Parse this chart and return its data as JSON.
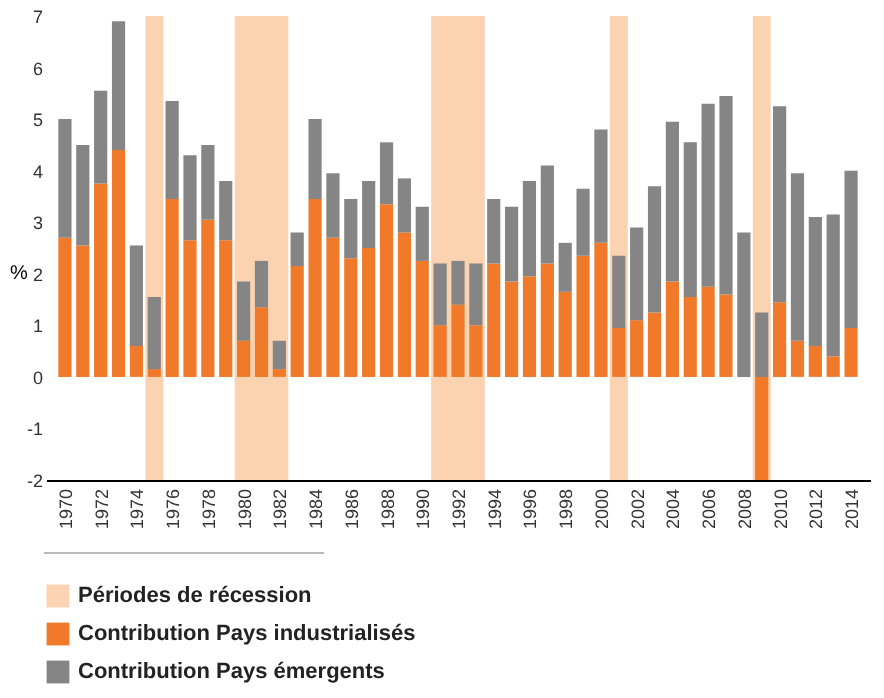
{
  "chart_data": {
    "type": "bar",
    "stacked": true,
    "ylabel": "%",
    "x": [
      1970,
      1971,
      1972,
      1973,
      1974,
      1975,
      1976,
      1977,
      1978,
      1979,
      1980,
      1981,
      1982,
      1983,
      1984,
      1985,
      1986,
      1987,
      1988,
      1989,
      1990,
      1991,
      1992,
      1993,
      1994,
      1995,
      1996,
      1997,
      1998,
      1999,
      2000,
      2001,
      2002,
      2003,
      2004,
      2005,
      2006,
      2007,
      2008,
      2009,
      2010,
      2011,
      2012,
      2013,
      2014
    ],
    "series": [
      {
        "name": "Contribution Pays industrialisés",
        "color": "#f07a2a",
        "values": [
          2.7,
          2.55,
          3.75,
          4.4,
          0.6,
          0.15,
          3.45,
          2.65,
          3.05,
          2.65,
          0.7,
          1.35,
          0.15,
          2.15,
          3.45,
          2.7,
          2.3,
          2.5,
          3.35,
          2.8,
          2.25,
          1.0,
          1.4,
          1.0,
          2.2,
          1.85,
          1.95,
          2.2,
          1.65,
          2.35,
          2.6,
          0.95,
          1.1,
          1.25,
          1.85,
          1.55,
          1.75,
          1.6,
          0.0,
          -2.0,
          1.45,
          0.7,
          0.6,
          0.4,
          0.95
        ]
      },
      {
        "name": "Contribution Pays émergents",
        "color": "#858585",
        "values": [
          2.3,
          1.95,
          1.8,
          2.5,
          1.95,
          1.4,
          1.9,
          1.65,
          1.45,
          1.15,
          1.15,
          0.9,
          0.55,
          0.65,
          1.55,
          1.25,
          1.15,
          1.3,
          1.2,
          1.05,
          1.05,
          1.2,
          0.85,
          1.2,
          1.25,
          1.45,
          1.85,
          1.9,
          0.95,
          1.3,
          2.2,
          1.4,
          1.8,
          2.45,
          3.1,
          3.0,
          3.55,
          3.85,
          2.8,
          1.25,
          3.8,
          3.25,
          2.5,
          2.75,
          3.05
        ]
      }
    ],
    "bands": [
      {
        "axis": "x",
        "from": 1974.5,
        "to": 1975.5,
        "label": "Périodes de récession",
        "color": "#fbd3b1"
      },
      {
        "axis": "x",
        "from": 1979.5,
        "to": 1982.5,
        "color": "#fbd3b1"
      },
      {
        "axis": "x",
        "from": 1990.5,
        "to": 1993.5,
        "color": "#fbd3b1"
      },
      {
        "axis": "x",
        "from": 2000.5,
        "to": 2001.5,
        "color": "#fbd3b1"
      },
      {
        "axis": "x",
        "from": 2008.5,
        "to": 2009.5,
        "color": "#fbd3b1"
      }
    ],
    "xlim": [
      1969.5,
      2014.5
    ],
    "xticks": [
      1970,
      1972,
      1974,
      1976,
      1978,
      1980,
      1982,
      1984,
      1986,
      1988,
      1990,
      1992,
      1994,
      1996,
      1998,
      2000,
      2002,
      2004,
      2006,
      2008,
      2010,
      2012,
      2014
    ],
    "ylim": [
      -2,
      7
    ],
    "yticks": [
      -2,
      -1,
      0,
      1,
      2,
      3,
      4,
      5,
      6,
      7
    ],
    "grid": false,
    "legend": "bottom"
  }
}
